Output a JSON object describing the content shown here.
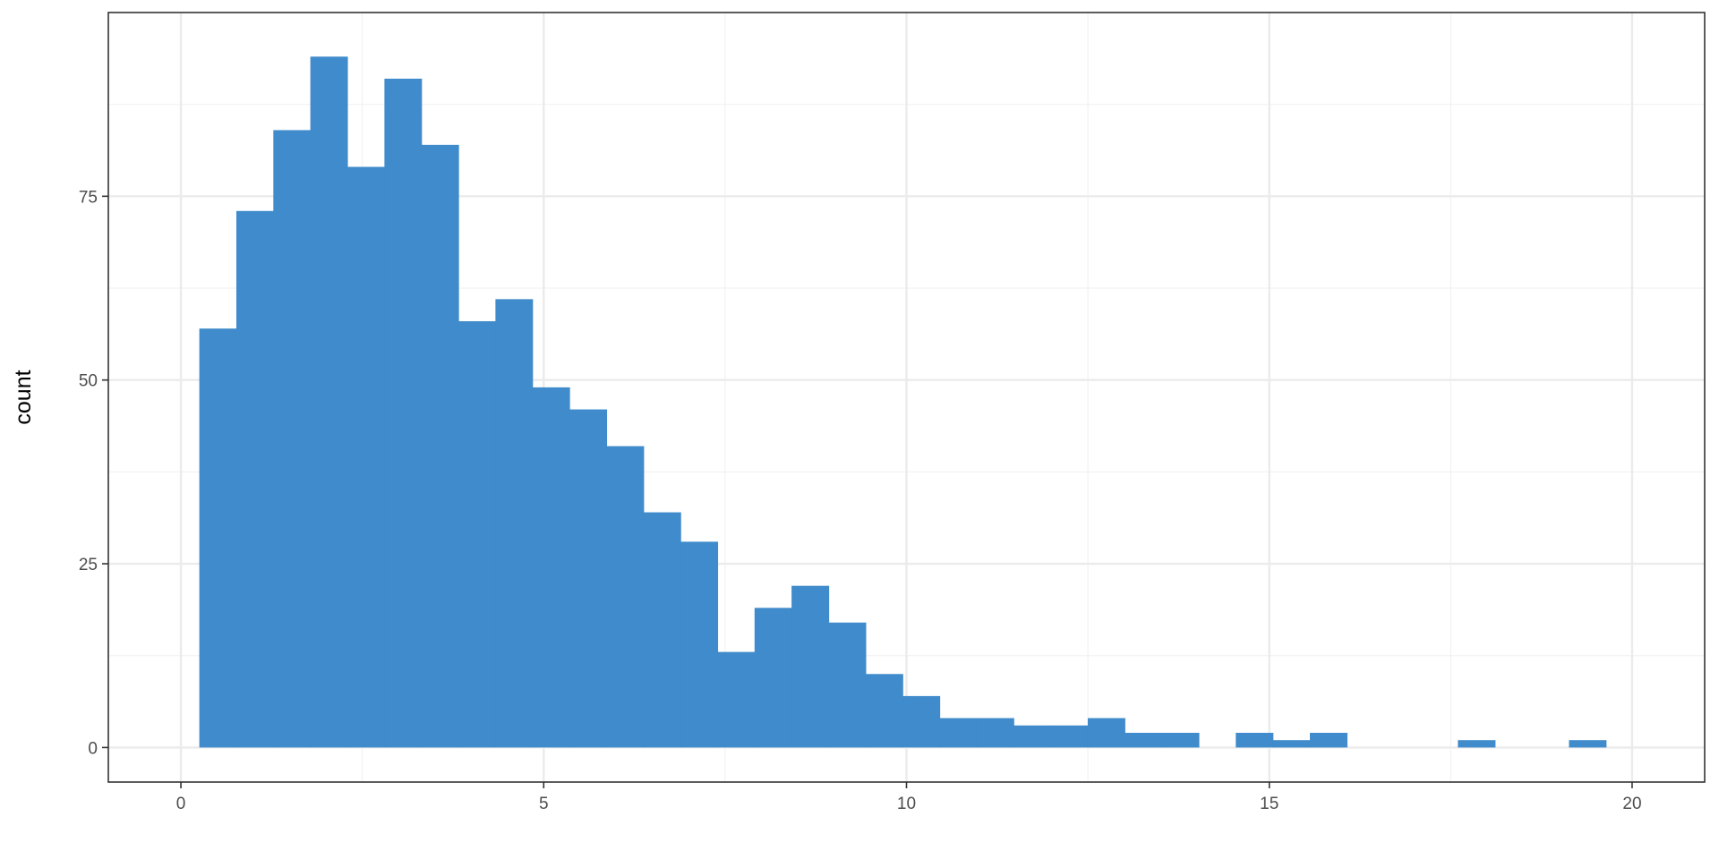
{
  "chart_data": {
    "type": "bar",
    "subtype": "histogram",
    "title": "",
    "xlabel": "",
    "ylabel": "count",
    "xlim": [
      -1,
      21
    ],
    "ylim": [
      -4.7,
      100
    ],
    "x_ticks": [
      0,
      5,
      10,
      15,
      20
    ],
    "y_ticks": [
      0,
      25,
      50,
      75
    ],
    "grid": true,
    "bin_width": 0.5102,
    "bins": [
      {
        "x0": 0.254,
        "x1": 0.764,
        "count": 57
      },
      {
        "x0": 0.764,
        "x1": 1.274,
        "count": 73
      },
      {
        "x0": 1.274,
        "x1": 1.784,
        "count": 84
      },
      {
        "x0": 1.784,
        "x1": 2.294,
        "count": 94
      },
      {
        "x0": 2.294,
        "x1": 2.805,
        "count": 79
      },
      {
        "x0": 2.805,
        "x1": 3.315,
        "count": 91
      },
      {
        "x0": 3.315,
        "x1": 3.825,
        "count": 82
      },
      {
        "x0": 3.825,
        "x1": 4.335,
        "count": 58
      },
      {
        "x0": 4.335,
        "x1": 4.845,
        "count": 61
      },
      {
        "x0": 4.845,
        "x1": 5.355,
        "count": 49
      },
      {
        "x0": 5.355,
        "x1": 5.866,
        "count": 46
      },
      {
        "x0": 5.866,
        "x1": 6.376,
        "count": 41
      },
      {
        "x0": 6.376,
        "x1": 6.886,
        "count": 32
      },
      {
        "x0": 6.886,
        "x1": 7.396,
        "count": 28
      },
      {
        "x0": 7.396,
        "x1": 7.906,
        "count": 13
      },
      {
        "x0": 7.906,
        "x1": 8.416,
        "count": 19
      },
      {
        "x0": 8.416,
        "x1": 8.927,
        "count": 22
      },
      {
        "x0": 8.927,
        "x1": 9.437,
        "count": 17
      },
      {
        "x0": 9.437,
        "x1": 9.947,
        "count": 10
      },
      {
        "x0": 9.947,
        "x1": 10.457,
        "count": 7
      },
      {
        "x0": 10.457,
        "x1": 10.967,
        "count": 4
      },
      {
        "x0": 10.967,
        "x1": 11.477,
        "count": 4
      },
      {
        "x0": 11.477,
        "x1": 11.988,
        "count": 3
      },
      {
        "x0": 11.988,
        "x1": 12.498,
        "count": 3
      },
      {
        "x0": 12.498,
        "x1": 13.008,
        "count": 4
      },
      {
        "x0": 13.008,
        "x1": 13.518,
        "count": 2
      },
      {
        "x0": 13.518,
        "x1": 14.028,
        "count": 2
      },
      {
        "x0": 14.028,
        "x1": 14.538,
        "count": 0
      },
      {
        "x0": 14.538,
        "x1": 15.049,
        "count": 2
      },
      {
        "x0": 15.049,
        "x1": 15.559,
        "count": 1
      },
      {
        "x0": 15.559,
        "x1": 16.069,
        "count": 2
      },
      {
        "x0": 16.069,
        "x1": 16.579,
        "count": 0
      },
      {
        "x0": 16.579,
        "x1": 17.089,
        "count": 0
      },
      {
        "x0": 17.089,
        "x1": 17.599,
        "count": 0
      },
      {
        "x0": 17.599,
        "x1": 18.11,
        "count": 1
      },
      {
        "x0": 18.11,
        "x1": 18.62,
        "count": 0
      },
      {
        "x0": 18.62,
        "x1": 19.13,
        "count": 0
      },
      {
        "x0": 19.13,
        "x1": 19.64,
        "count": 1
      }
    ],
    "colors": {
      "bar": "#3f8bcb",
      "grid_major": "#ebebeb",
      "grid_minor": "#f2f2f2",
      "panel_border": "#333333",
      "tick_mark": "#333333"
    }
  }
}
